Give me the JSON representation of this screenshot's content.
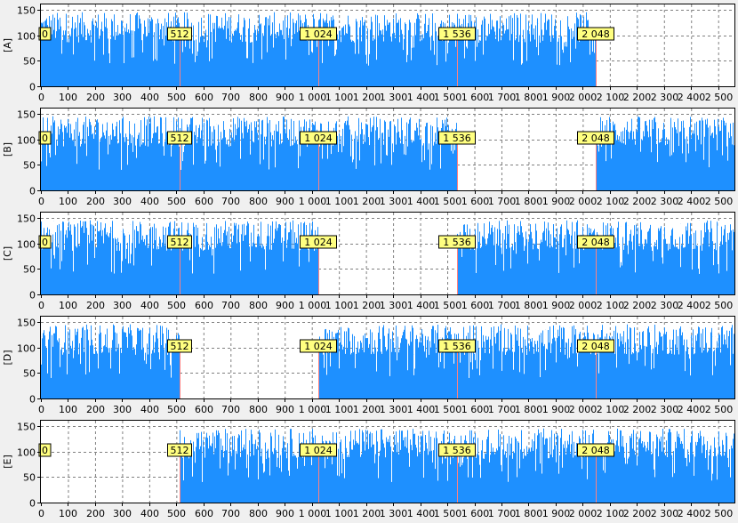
{
  "chart_data": [
    {
      "type": "bar",
      "ylabel": "[A]",
      "xlim": [
        0,
        2560
      ],
      "ylim": [
        0,
        160
      ],
      "xticks": [
        0,
        100,
        200,
        300,
        400,
        500,
        600,
        700,
        800,
        900,
        1000,
        1100,
        1200,
        1300,
        1400,
        1500,
        1600,
        1700,
        1800,
        1900,
        2000,
        2100,
        2200,
        2300,
        2400,
        2500
      ],
      "xtick_labels": [
        "0",
        "100",
        "200",
        "300",
        "400",
        "500",
        "600",
        "700",
        "800",
        "900",
        "1 000",
        "1 100",
        "1 200",
        "1 300",
        "1 400",
        "1 500",
        "1 600",
        "1 700",
        "1 800",
        "1 900",
        "2 000",
        "2 100",
        "2 200",
        "2 300",
        "2 400",
        "2 500"
      ],
      "yticks": [
        0,
        50,
        100,
        150
      ],
      "grid": true,
      "filled_ranges": [
        [
          0,
          2048
        ]
      ],
      "markers": [
        {
          "x": 0,
          "label": "0"
        },
        {
          "x": 512,
          "label": "512"
        },
        {
          "x": 1024,
          "label": "1 024"
        },
        {
          "x": 1536,
          "label": "1 536"
        },
        {
          "x": 2048,
          "label": "2 048"
        }
      ],
      "typical_value_range": [
        85,
        145
      ],
      "bar_color": "#1e90ff",
      "marker_line_color": "#ff8080",
      "marker_box_color": "#ffff80"
    },
    {
      "type": "bar",
      "ylabel": "[B]",
      "xlim": [
        0,
        2560
      ],
      "ylim": [
        0,
        160
      ],
      "xticks": [
        0,
        100,
        200,
        300,
        400,
        500,
        600,
        700,
        800,
        900,
        1000,
        1100,
        1200,
        1300,
        1400,
        1500,
        1600,
        1700,
        1800,
        1900,
        2000,
        2100,
        2200,
        2300,
        2400,
        2500
      ],
      "xtick_labels": [
        "0",
        "100",
        "200",
        "300",
        "400",
        "500",
        "600",
        "700",
        "800",
        "900",
        "1 000",
        "1 100",
        "1 200",
        "1 300",
        "1 400",
        "1 500",
        "1 600",
        "1 700",
        "1 800",
        "1 900",
        "2 000",
        "2 100",
        "2 200",
        "2 300",
        "2 400",
        "2 500"
      ],
      "yticks": [
        0,
        50,
        100,
        150
      ],
      "grid": true,
      "filled_ranges": [
        [
          0,
          1536
        ],
        [
          2048,
          2560
        ]
      ],
      "markers": [
        {
          "x": 0,
          "label": "0"
        },
        {
          "x": 512,
          "label": "512"
        },
        {
          "x": 1024,
          "label": "1 024"
        },
        {
          "x": 1536,
          "label": "1 536"
        },
        {
          "x": 2048,
          "label": "2 048"
        }
      ],
      "typical_value_range": [
        85,
        145
      ],
      "bar_color": "#1e90ff",
      "marker_line_color": "#ff8080",
      "marker_box_color": "#ffff80"
    },
    {
      "type": "bar",
      "ylabel": "[C]",
      "xlim": [
        0,
        2560
      ],
      "ylim": [
        0,
        160
      ],
      "xticks": [
        0,
        100,
        200,
        300,
        400,
        500,
        600,
        700,
        800,
        900,
        1000,
        1100,
        1200,
        1300,
        1400,
        1500,
        1600,
        1700,
        1800,
        1900,
        2000,
        2100,
        2200,
        2300,
        2400,
        2500
      ],
      "xtick_labels": [
        "0",
        "100",
        "200",
        "300",
        "400",
        "500",
        "600",
        "700",
        "800",
        "900",
        "1 000",
        "1 100",
        "1 200",
        "1 300",
        "1 400",
        "1 500",
        "1 600",
        "1 700",
        "1 800",
        "1 900",
        "2 000",
        "2 100",
        "2 200",
        "2 300",
        "2 400",
        "2 500"
      ],
      "yticks": [
        0,
        50,
        100,
        150
      ],
      "grid": true,
      "filled_ranges": [
        [
          0,
          1024
        ],
        [
          1536,
          2560
        ]
      ],
      "markers": [
        {
          "x": 0,
          "label": "0"
        },
        {
          "x": 512,
          "label": "512"
        },
        {
          "x": 1024,
          "label": "1 024"
        },
        {
          "x": 1536,
          "label": "1 536"
        },
        {
          "x": 2048,
          "label": "2 048"
        }
      ],
      "typical_value_range": [
        85,
        145
      ],
      "bar_color": "#1e90ff",
      "marker_line_color": "#ff8080",
      "marker_box_color": "#ffff80"
    },
    {
      "type": "bar",
      "ylabel": "[D]",
      "xlim": [
        0,
        2560
      ],
      "ylim": [
        0,
        160
      ],
      "xticks": [
        0,
        100,
        200,
        300,
        400,
        500,
        600,
        700,
        800,
        900,
        1000,
        1100,
        1200,
        1300,
        1400,
        1500,
        1600,
        1700,
        1800,
        1900,
        2000,
        2100,
        2200,
        2300,
        2400,
        2500
      ],
      "xtick_labels": [
        "0",
        "100",
        "200",
        "300",
        "400",
        "500",
        "600",
        "700",
        "800",
        "900",
        "1 000",
        "1 100",
        "1 200",
        "1 300",
        "1 400",
        "1 500",
        "1 600",
        "1 700",
        "1 800",
        "1 900",
        "2 000",
        "2 100",
        "2 200",
        "2 300",
        "2 400",
        "2 500"
      ],
      "yticks": [
        0,
        50,
        100,
        150
      ],
      "grid": true,
      "filled_ranges": [
        [
          0,
          512
        ],
        [
          1024,
          2560
        ]
      ],
      "markers": [
        {
          "x": 512,
          "label": "512"
        },
        {
          "x": 1024,
          "label": "1 024"
        },
        {
          "x": 1536,
          "label": "1 536"
        },
        {
          "x": 2048,
          "label": "2 048"
        }
      ],
      "typical_value_range": [
        85,
        145
      ],
      "bar_color": "#1e90ff",
      "marker_line_color": "#ff8080",
      "marker_box_color": "#ffff80"
    },
    {
      "type": "bar",
      "ylabel": "[E]",
      "xlim": [
        0,
        2560
      ],
      "ylim": [
        0,
        160
      ],
      "xticks": [
        0,
        100,
        200,
        300,
        400,
        500,
        600,
        700,
        800,
        900,
        1000,
        1100,
        1200,
        1300,
        1400,
        1500,
        1600,
        1700,
        1800,
        1900,
        2000,
        2100,
        2200,
        2300,
        2400,
        2500
      ],
      "xtick_labels": [
        "0",
        "100",
        "200",
        "300",
        "400",
        "500",
        "600",
        "700",
        "800",
        "900",
        "1 000",
        "1 100",
        "1 200",
        "1 300",
        "1 400",
        "1 500",
        "1 600",
        "1 700",
        "1 800",
        "1 900",
        "2 000",
        "2 100",
        "2 200",
        "2 300",
        "2 400",
        "2 500"
      ],
      "yticks": [
        0,
        50,
        100,
        150
      ],
      "grid": true,
      "filled_ranges": [
        [
          512,
          2560
        ]
      ],
      "markers": [
        {
          "x": 0,
          "label": "0"
        },
        {
          "x": 512,
          "label": "512"
        },
        {
          "x": 1024,
          "label": "1 024"
        },
        {
          "x": 1536,
          "label": "1 536"
        },
        {
          "x": 2048,
          "label": "2 048"
        }
      ],
      "typical_value_range": [
        85,
        145
      ],
      "bar_color": "#1e90ff",
      "marker_line_color": "#ff8080",
      "marker_box_color": "#ffff80"
    }
  ]
}
